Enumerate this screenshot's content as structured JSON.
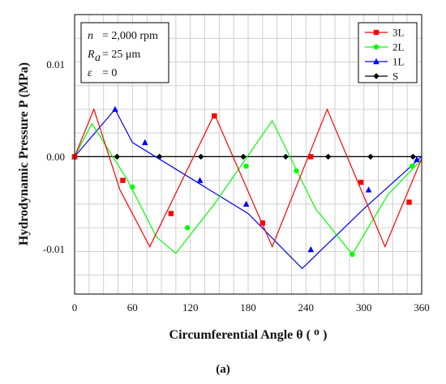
{
  "chart_data": {
    "type": "line",
    "xlabel": "Circumferential Angle θ ( ᴼ )",
    "ylabel": "Hydrodynamic Pressure P (MPa)",
    "xlim": [
      0,
      360
    ],
    "ylim": [
      -0.0145,
      0.015
    ],
    "xticks": [
      "0",
      "60",
      "120",
      "180",
      "240",
      "300",
      "360"
    ],
    "yticks": [
      {
        "value": 0.01,
        "label": "0.01"
      },
      {
        "value": 0.0,
        "label": "0.00"
      },
      {
        "value": -0.01,
        "label": "-0.01"
      }
    ],
    "grid": true,
    "legend_position": "top-right",
    "annotations": {
      "n": {
        "symbol": "n",
        "value": "= 2,000 rpm"
      },
      "ra": {
        "symbol": "R",
        "sub": "a",
        "value": "= 25 μm"
      },
      "eps": {
        "symbol": "ε",
        "value": "= 0"
      }
    },
    "caption": "(a)",
    "series": [
      {
        "name": "3L",
        "color": "#ff0000",
        "marker": "square",
        "x": [
          0,
          20,
          47,
          78,
          145,
          205,
          262,
          322,
          360
        ],
        "y": [
          0,
          0.005,
          -0.0035,
          -0.0095,
          0.0045,
          -0.0095,
          0.005,
          -0.0095,
          -0.0002
        ],
        "marker_x": [
          0,
          50,
          100,
          145,
          195,
          245,
          297,
          347
        ],
        "marker_y": [
          0,
          -0.0025,
          -0.006,
          0.0043,
          -0.007,
          0.0,
          -0.0027,
          -0.0048
        ]
      },
      {
        "name": "2L",
        "color": "#00ff00",
        "marker": "circle",
        "x": [
          0,
          18,
          55,
          85,
          105,
          145,
          205,
          250,
          288,
          325,
          360
        ],
        "y": [
          0,
          0.0035,
          -0.0025,
          -0.0085,
          -0.0102,
          -0.005,
          0.0038,
          -0.0055,
          -0.0103,
          -0.004,
          -0.0003
        ],
        "marker_x": [
          0,
          60,
          117,
          178,
          230,
          288,
          350
        ],
        "marker_y": [
          0,
          -0.0032,
          -0.0075,
          -0.001,
          -0.0015,
          -0.0103,
          -0.001
        ]
      },
      {
        "name": "1L",
        "color": "#0000ff",
        "marker": "triangle",
        "x": [
          0,
          42,
          60,
          180,
          236,
          300,
          360
        ],
        "y": [
          0,
          0.005,
          0.0015,
          -0.006,
          -0.0118,
          -0.0055,
          0.0
        ],
        "marker_x": [
          0,
          42,
          73,
          130,
          178,
          245,
          305,
          355
        ],
        "marker_y": [
          0,
          0.005,
          0.0015,
          -0.0025,
          -0.005,
          -0.0098,
          -0.0035,
          -0.0003
        ]
      },
      {
        "name": "S",
        "color": "#000000",
        "marker": "diamond",
        "x": [
          0,
          360
        ],
        "y": [
          0,
          0
        ],
        "marker_x": [
          0,
          44,
          88,
          131,
          175,
          219,
          263,
          307,
          351
        ],
        "marker_y": [
          0,
          0,
          0,
          0,
          0,
          0,
          0,
          0,
          0
        ]
      }
    ]
  }
}
